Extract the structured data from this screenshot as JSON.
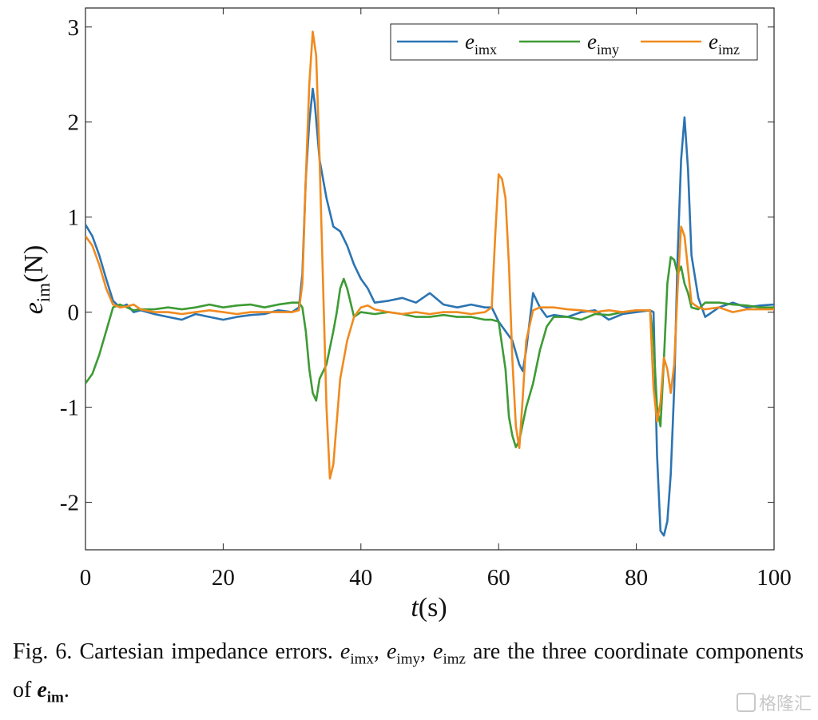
{
  "chart_data": {
    "type": "line",
    "xlabel": "t(s)",
    "ylabel": "e_im(N)",
    "xlim": [
      0,
      100
    ],
    "ylim": [
      -2.5,
      3.2
    ],
    "xticks": [
      0,
      20,
      40,
      60,
      80,
      100
    ],
    "yticks": [
      3,
      2,
      1,
      0,
      -1,
      -2
    ],
    "grid": false,
    "legend_position": "top-right",
    "series": [
      {
        "name": "e_imx",
        "color": "#2c74b2",
        "x": [
          0,
          1,
          2,
          3,
          4,
          5,
          6,
          7,
          8,
          9,
          10,
          12,
          14,
          16,
          18,
          20,
          22,
          24,
          26,
          28,
          30,
          31,
          31.5,
          32,
          32.5,
          33,
          33.3,
          34,
          35,
          36,
          37,
          38,
          39,
          40,
          41,
          42,
          44,
          46,
          48,
          50,
          52,
          54,
          56,
          58,
          59,
          60,
          61,
          62,
          63,
          63.5,
          64,
          65,
          66,
          67,
          68,
          70,
          72,
          74,
          76,
          78,
          80,
          82,
          82.5,
          83,
          83.5,
          84,
          84.5,
          85,
          85.5,
          86,
          86.5,
          87,
          87.5,
          88,
          89,
          90,
          92,
          94,
          96,
          98,
          100
        ],
        "y": [
          0.92,
          0.8,
          0.6,
          0.35,
          0.12,
          0.05,
          0.08,
          0.0,
          0.02,
          0.0,
          -0.02,
          -0.05,
          -0.08,
          -0.02,
          -0.05,
          -0.08,
          -0.05,
          -0.03,
          -0.02,
          0.02,
          0.0,
          0.05,
          0.4,
          1.4,
          2.0,
          2.35,
          2.2,
          1.6,
          1.2,
          0.9,
          0.85,
          0.7,
          0.5,
          0.35,
          0.25,
          0.1,
          0.12,
          0.15,
          0.1,
          0.2,
          0.08,
          0.05,
          0.08,
          0.05,
          0.05,
          -0.1,
          -0.2,
          -0.3,
          -0.55,
          -0.62,
          -0.4,
          0.2,
          0.05,
          -0.05,
          -0.03,
          -0.05,
          0.0,
          0.02,
          -0.08,
          -0.02,
          0.0,
          0.02,
          0.0,
          -1.5,
          -2.3,
          -2.35,
          -2.2,
          -1.7,
          -0.8,
          0.6,
          1.6,
          2.05,
          1.5,
          0.6,
          0.15,
          -0.05,
          0.05,
          0.1,
          0.05,
          0.07,
          0.08
        ]
      },
      {
        "name": "e_imy",
        "color": "#3d9b35",
        "x": [
          0,
          1,
          2,
          3,
          4,
          5,
          6,
          7,
          8,
          10,
          12,
          14,
          16,
          18,
          20,
          22,
          24,
          26,
          28,
          30,
          31,
          31.5,
          32,
          32.5,
          33,
          33.5,
          34,
          35,
          36,
          36.5,
          37,
          37.5,
          38,
          39,
          40,
          42,
          44,
          46,
          48,
          50,
          52,
          54,
          56,
          58,
          59,
          60,
          61,
          61.5,
          62,
          62.5,
          63,
          64,
          65,
          66,
          67,
          68,
          70,
          72,
          74,
          76,
          78,
          80,
          82,
          82.5,
          83,
          83.5,
          84,
          84.5,
          85,
          85.5,
          86,
          86.5,
          87,
          87.5,
          88,
          89,
          90,
          92,
          94,
          96,
          98,
          100
        ],
        "y": [
          -0.75,
          -0.65,
          -0.45,
          -0.2,
          0.05,
          0.08,
          0.05,
          0.02,
          0.03,
          0.03,
          0.05,
          0.03,
          0.05,
          0.08,
          0.05,
          0.07,
          0.08,
          0.05,
          0.08,
          0.1,
          0.1,
          0.05,
          -0.2,
          -0.6,
          -0.85,
          -0.93,
          -0.7,
          -0.55,
          -0.2,
          0.0,
          0.25,
          0.35,
          0.25,
          -0.05,
          0.0,
          -0.02,
          0.0,
          -0.02,
          -0.05,
          -0.05,
          -0.03,
          -0.05,
          -0.05,
          -0.08,
          -0.08,
          -0.1,
          -0.6,
          -1.1,
          -1.3,
          -1.42,
          -1.35,
          -1.0,
          -0.75,
          -0.4,
          -0.15,
          -0.05,
          -0.05,
          -0.08,
          -0.02,
          -0.03,
          0.0,
          0.02,
          0.02,
          -0.3,
          -1.0,
          -1.2,
          -0.5,
          0.3,
          0.58,
          0.55,
          0.4,
          0.48,
          0.3,
          0.2,
          0.05,
          0.03,
          0.1,
          0.1,
          0.08,
          0.07,
          0.05,
          0.05
        ]
      },
      {
        "name": "e_imz",
        "color": "#f08a1e",
        "x": [
          0,
          1,
          2,
          3,
          4,
          5,
          6,
          7,
          8,
          10,
          12,
          14,
          16,
          18,
          20,
          22,
          24,
          26,
          28,
          30,
          31,
          31.5,
          32,
          32.5,
          33,
          33.5,
          34,
          34.5,
          35,
          35.5,
          36,
          37,
          38,
          39,
          40,
          41,
          42,
          44,
          46,
          48,
          50,
          52,
          54,
          56,
          58,
          59,
          59.5,
          60,
          60.5,
          61,
          61.5,
          62,
          62.5,
          63,
          63.5,
          64,
          65,
          66,
          67,
          68,
          70,
          72,
          74,
          76,
          78,
          80,
          82,
          82.5,
          83,
          83.5,
          84,
          84.5,
          85,
          85.5,
          86,
          86.5,
          87,
          87.5,
          88,
          89,
          90,
          92,
          94,
          96,
          98,
          100
        ],
        "y": [
          0.8,
          0.7,
          0.5,
          0.25,
          0.08,
          0.05,
          0.06,
          0.08,
          0.03,
          0.0,
          0.0,
          -0.02,
          0.0,
          0.02,
          0.0,
          -0.02,
          0.0,
          0.0,
          0.0,
          0.0,
          0.02,
          0.3,
          1.4,
          2.4,
          2.95,
          2.7,
          1.6,
          0.3,
          -1.0,
          -1.75,
          -1.6,
          -0.7,
          -0.3,
          -0.05,
          0.05,
          0.07,
          0.03,
          0.0,
          -0.02,
          0.0,
          -0.02,
          0.0,
          0.0,
          -0.02,
          0.0,
          0.05,
          0.8,
          1.45,
          1.4,
          1.2,
          0.5,
          -0.5,
          -1.2,
          -1.43,
          -0.9,
          -0.3,
          0.02,
          0.05,
          0.05,
          0.05,
          0.03,
          0.02,
          0.0,
          0.02,
          0.0,
          0.02,
          0.02,
          -0.8,
          -1.15,
          -0.95,
          -0.48,
          -0.6,
          -0.85,
          -0.55,
          0.25,
          0.9,
          0.8,
          0.45,
          0.1,
          0.05,
          0.03,
          0.05,
          0.0,
          0.03,
          0.03,
          0.03
        ]
      }
    ]
  },
  "caption": {
    "lead": "Fig. 6. Cartesian impedance errors.",
    "vars": [
      {
        "base": "e",
        "sub": "imx"
      },
      {
        "base": "e",
        "sub": "imy"
      },
      {
        "base": "e",
        "sub": "imz"
      }
    ],
    "mid": "are the three coordinate components of",
    "symbol_base": "e",
    "symbol_sub": "im",
    "end": "."
  },
  "watermark": {
    "text": "格隆汇"
  }
}
